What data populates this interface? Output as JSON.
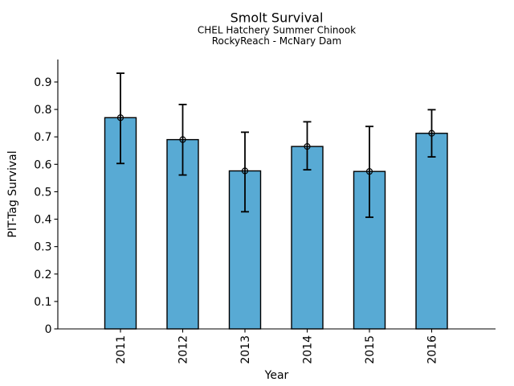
{
  "chart_data": {
    "type": "bar",
    "title": "Smolt Survival",
    "subtitle": [
      "CHEL Hatchery Summer Chinook",
      "RockyReach - McNary Dam"
    ],
    "categories": [
      "2011",
      "2012",
      "2013",
      "2014",
      "2015",
      "2016"
    ],
    "values": [
      0.77,
      0.69,
      0.576,
      0.665,
      0.574,
      0.713
    ],
    "error_low": [
      0.603,
      0.561,
      0.427,
      0.58,
      0.407,
      0.627
    ],
    "error_high": [
      0.932,
      0.818,
      0.717,
      0.755,
      0.738,
      0.799
    ],
    "xlabel": "Year",
    "ylabel": "PIT-Tag Survival",
    "yticks": [
      0,
      0.1,
      0.2,
      0.3,
      0.4,
      0.5,
      0.6,
      0.7,
      0.8,
      0.9
    ],
    "ytick_labels": [
      "0",
      "0.1",
      "0.2",
      "0.3",
      "0.4",
      "0.5",
      "0.6",
      "0.7",
      "0.8",
      "0.9"
    ],
    "ylim": [
      0,
      0.982
    ],
    "grid": false,
    "legend": null,
    "marker": "open-circle",
    "bar_color": "#58aad4",
    "bar_edge_color": "#000000",
    "error_color": "#000000",
    "axis_color": "#000000",
    "background_color": "#ffffff"
  }
}
